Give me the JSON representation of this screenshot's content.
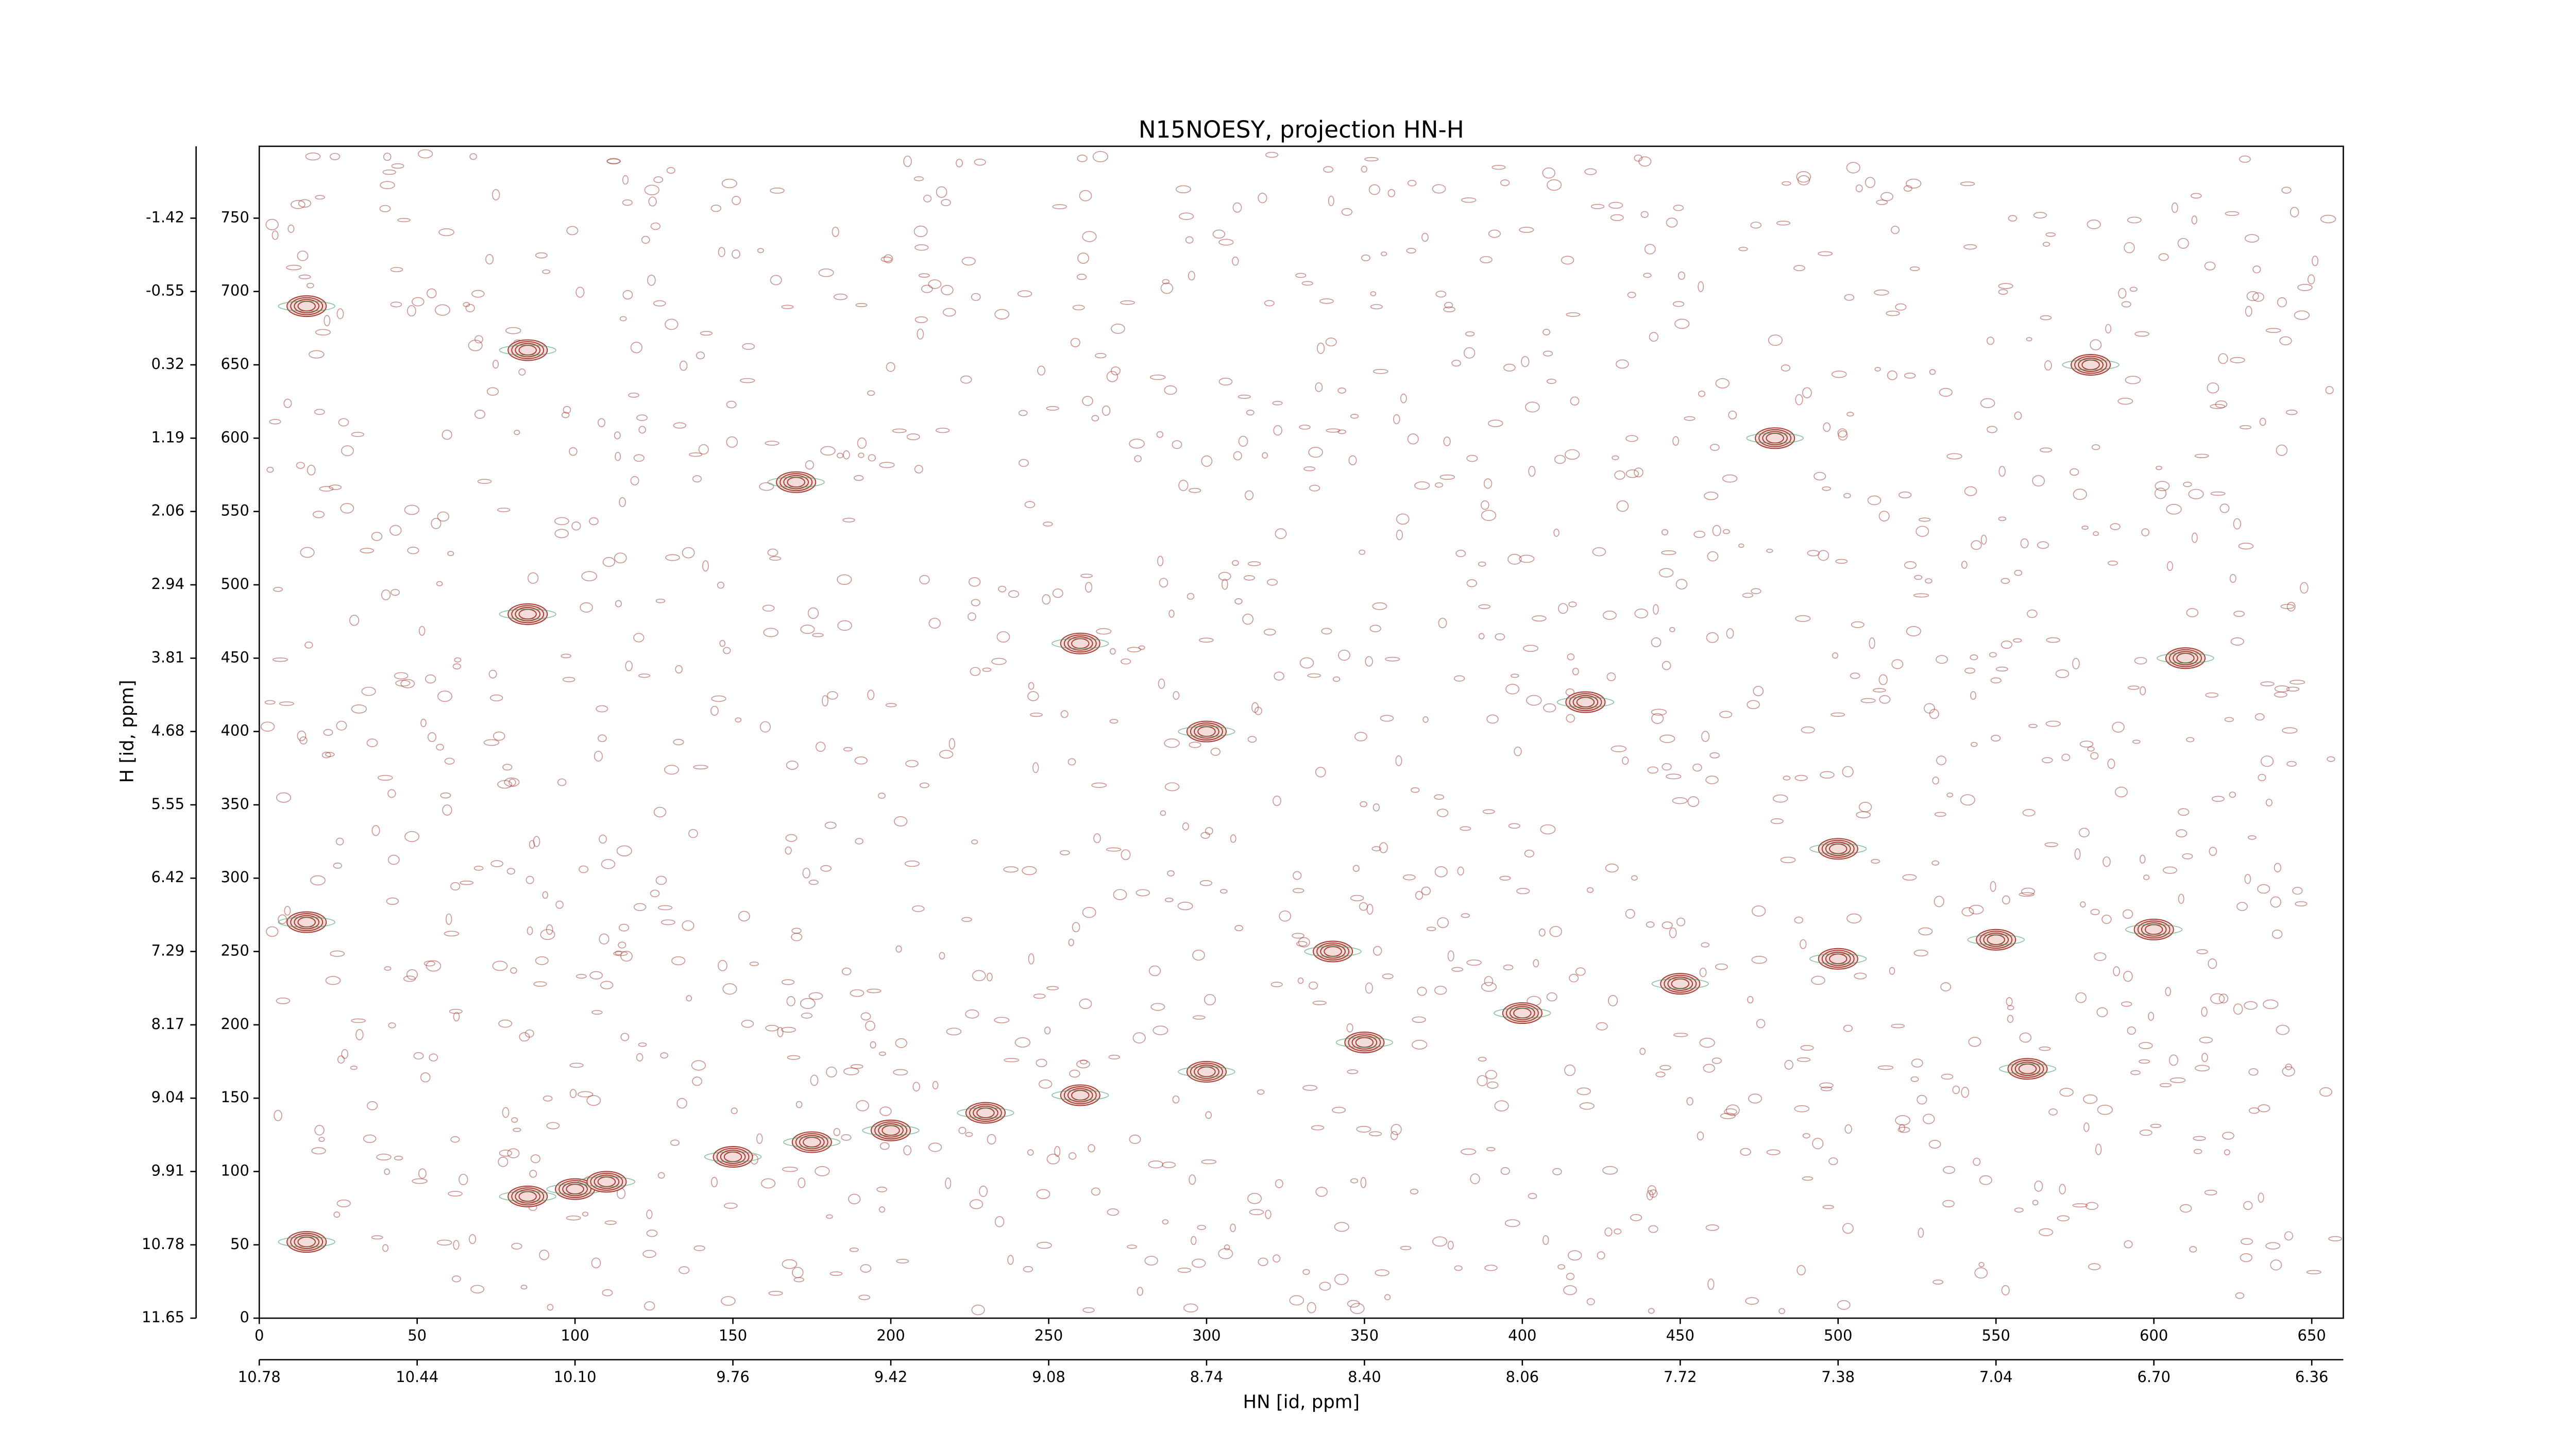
{
  "chart_data": {
    "type": "contour",
    "title": "N15NOESY, projection HN-H",
    "xlabel": "HN [id, ppm]",
    "ylabel": "H [id, ppm]",
    "xlim": [
      0,
      660
    ],
    "ylim": [
      0,
      799
    ],
    "xticks": [
      0,
      50,
      100,
      150,
      200,
      250,
      300,
      350,
      400,
      450,
      500,
      550,
      600,
      650
    ],
    "yticks": [
      0,
      50,
      100,
      150,
      200,
      250,
      300,
      350,
      400,
      450,
      500,
      550,
      600,
      650,
      700,
      750
    ],
    "x2ticks": [
      {
        "value": 0,
        "label": "10.78"
      },
      {
        "value": 50,
        "label": "10.44"
      },
      {
        "value": 100,
        "label": "10.10"
      },
      {
        "value": 150,
        "label": "9.76"
      },
      {
        "value": 200,
        "label": "9.42"
      },
      {
        "value": 250,
        "label": "9.08"
      },
      {
        "value": 300,
        "label": "8.74"
      },
      {
        "value": 350,
        "label": "8.40"
      },
      {
        "value": 400,
        "label": "8.06"
      },
      {
        "value": 450,
        "label": "7.72"
      },
      {
        "value": 500,
        "label": "7.38"
      },
      {
        "value": 550,
        "label": "7.04"
      },
      {
        "value": 600,
        "label": "6.70"
      },
      {
        "value": 650,
        "label": "6.36"
      }
    ],
    "y2lim": [
      0,
      799
    ],
    "y2ticks": [
      {
        "value": 0,
        "label": "11.65"
      },
      {
        "value": 50,
        "label": "10.78"
      },
      {
        "value": 100,
        "label": "9.91"
      },
      {
        "value": 150,
        "label": "9.04"
      },
      {
        "value": 200,
        "label": "8.17"
      },
      {
        "value": 250,
        "label": "7.29"
      },
      {
        "value": 300,
        "label": "6.42"
      },
      {
        "value": 350,
        "label": "5.55"
      },
      {
        "value": 400,
        "label": "4.68"
      },
      {
        "value": 450,
        "label": "3.81"
      },
      {
        "value": 500,
        "label": "2.94"
      },
      {
        "value": 550,
        "label": "2.06"
      },
      {
        "value": 600,
        "label": "1.19"
      },
      {
        "value": 650,
        "label": "0.32"
      },
      {
        "value": 700,
        "label": "-0.55"
      },
      {
        "value": 750,
        "label": "-1.42"
      }
    ],
    "positive_color": "#a83a32",
    "negative_color": "#3c9a5c",
    "peaks": {
      "x": [
        15,
        85,
        100,
        110,
        150,
        175,
        200,
        230,
        260,
        300,
        350,
        400,
        450,
        500,
        550,
        600,
        480,
        300,
        420,
        610,
        580,
        15,
        85,
        85,
        15,
        500,
        170,
        340,
        260,
        560
      ],
      "y": [
        52,
        83,
        88,
        93,
        110,
        120,
        128,
        140,
        152,
        168,
        188,
        208,
        228,
        245,
        258,
        265,
        600,
        400,
        420,
        450,
        650,
        690,
        660,
        480,
        270,
        320,
        570,
        250,
        460,
        170
      ]
    }
  }
}
